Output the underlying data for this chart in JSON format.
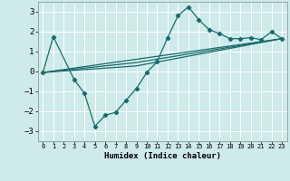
{
  "xlabel": "Humidex (Indice chaleur)",
  "background_color": "#ceeaea",
  "grid_color": "#ffffff",
  "line_color": "#1a6b6b",
  "xlim": [
    -0.5,
    23.5
  ],
  "ylim": [
    -3.5,
    3.5
  ],
  "xticks": [
    0,
    1,
    2,
    3,
    4,
    5,
    6,
    7,
    8,
    9,
    10,
    11,
    12,
    13,
    14,
    15,
    16,
    17,
    18,
    19,
    20,
    21,
    22,
    23
  ],
  "yticks": [
    -3,
    -2,
    -1,
    0,
    1,
    2,
    3
  ],
  "series1_x": [
    0,
    1,
    3,
    4,
    5,
    6,
    7,
    8,
    9,
    10,
    11,
    12,
    13,
    14,
    15,
    16,
    17,
    18,
    19,
    20,
    21,
    22,
    23
  ],
  "series1_y": [
    -0.05,
    1.75,
    -0.4,
    -1.1,
    -2.75,
    -2.2,
    -2.05,
    -1.45,
    -0.85,
    -0.05,
    0.5,
    1.7,
    2.8,
    3.25,
    2.6,
    2.1,
    1.9,
    1.65,
    1.65,
    1.7,
    1.6,
    2.0,
    1.65
  ],
  "line2_x": [
    0,
    23
  ],
  "line2_y": [
    -0.05,
    1.65
  ],
  "line3_x": [
    0,
    9,
    23
  ],
  "line3_y": [
    -0.05,
    0.28,
    1.65
  ],
  "line4_x": [
    0,
    9,
    23
  ],
  "line4_y": [
    -0.05,
    0.45,
    1.65
  ]
}
